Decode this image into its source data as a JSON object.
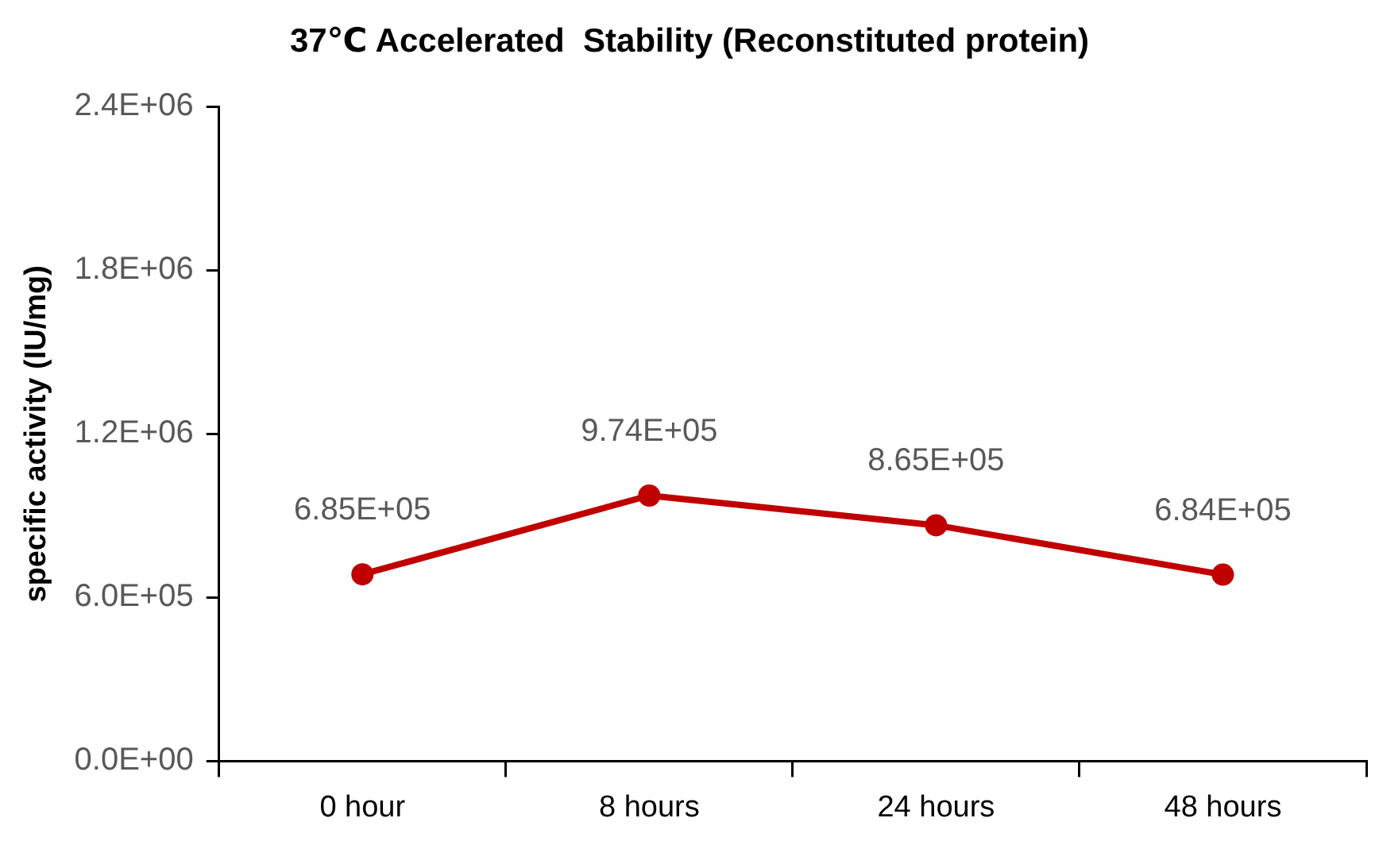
{
  "chart_data": {
    "type": "line",
    "title": "37℃ Accelerated  Stability (Reconstituted protein)",
    "ylabel": "specific activity (IU/mg)",
    "categories": [
      "0 hour",
      "8 hours",
      "24 hours",
      "48 hours"
    ],
    "series": [
      {
        "color": "#c00000",
        "values": [
          685000,
          974000,
          865000,
          684000
        ],
        "value_labels": [
          "6.85E+05",
          "9.74E+05",
          "8.65E+05",
          "6.84E+05"
        ]
      }
    ],
    "ylim": [
      0,
      2400000
    ],
    "yticks": [
      {
        "value": 0,
        "label": "0.0E+00"
      },
      {
        "value": 600000,
        "label": "6.0E+05"
      },
      {
        "value": 1200000,
        "label": "1.2E+06"
      },
      {
        "value": 1800000,
        "label": "1.8E+06"
      },
      {
        "value": 2400000,
        "label": "2.4E+06"
      }
    ],
    "grid": false,
    "legend": false,
    "marker": "circle",
    "line_style": "solid"
  }
}
